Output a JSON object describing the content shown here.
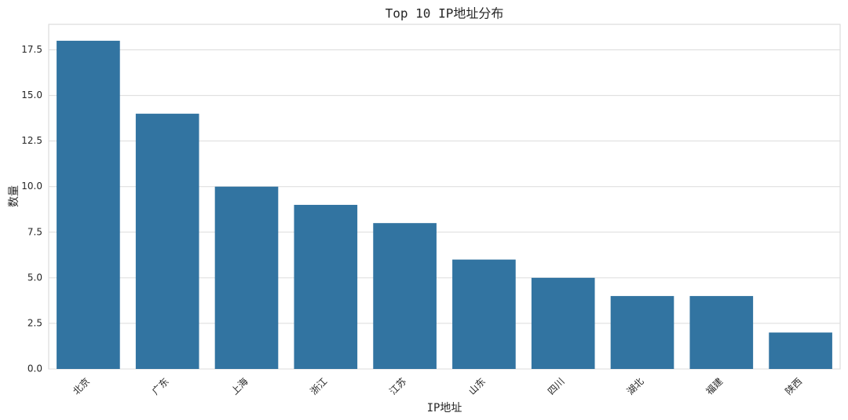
{
  "chart_data": {
    "type": "bar",
    "title": "Top 10 IP地址分布",
    "x_label": "IP地址",
    "y_label": "数量",
    "categories": [
      "北京",
      "广东",
      "上海",
      "浙江",
      "江苏",
      "山东",
      "四川",
      "湖北",
      "福建",
      "陕西"
    ],
    "values": [
      18,
      14,
      10,
      9,
      8,
      6,
      5,
      4,
      4,
      2
    ],
    "color": "#3274a1",
    "ylim": [
      0,
      18.9
    ],
    "yticks": [
      {
        "value": 0,
        "label": "0.0"
      },
      2.5,
      {
        "value": 5,
        "label": "5.0"
      },
      7.5,
      {
        "value": 10,
        "label": "10.0"
      },
      12.5,
      {
        "value": 15,
        "label": "15.0"
      },
      17.5
    ],
    "grid": true
  }
}
